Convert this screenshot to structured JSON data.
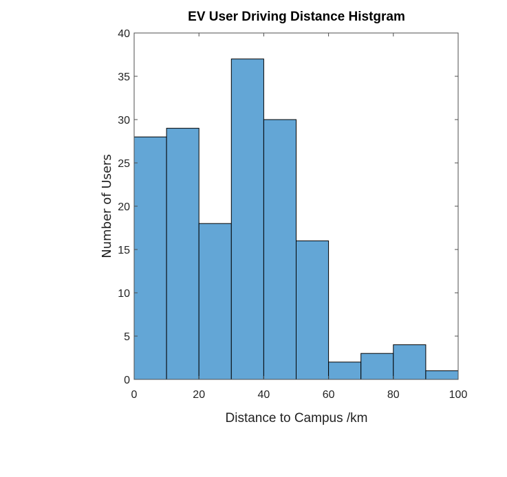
{
  "chart_data": {
    "type": "bar",
    "title": "EV User Driving Distance Histgram",
    "xlabel": "Distance to Campus /km",
    "ylabel": "Number of Users",
    "bins": [
      {
        "start": 0,
        "end": 10,
        "value": 28
      },
      {
        "start": 10,
        "end": 20,
        "value": 29
      },
      {
        "start": 20,
        "end": 30,
        "value": 18
      },
      {
        "start": 30,
        "end": 40,
        "value": 37
      },
      {
        "start": 40,
        "end": 50,
        "value": 30
      },
      {
        "start": 50,
        "end": 60,
        "value": 16
      },
      {
        "start": 60,
        "end": 70,
        "value": 2
      },
      {
        "start": 70,
        "end": 80,
        "value": 3
      },
      {
        "start": 80,
        "end": 90,
        "value": 4
      },
      {
        "start": 90,
        "end": 100,
        "value": 1
      }
    ],
    "xlim": [
      0,
      100
    ],
    "ylim": [
      0,
      40
    ],
    "xticks": [
      "0",
      "20",
      "40",
      "60",
      "80",
      "100"
    ],
    "yticks": [
      "0",
      "5",
      "10",
      "15",
      "20",
      "25",
      "30",
      "35",
      "40"
    ],
    "grid": false,
    "bar_color": "#63a6d6",
    "edge_color": "#000000",
    "axis_color": "#4d4d4d"
  }
}
